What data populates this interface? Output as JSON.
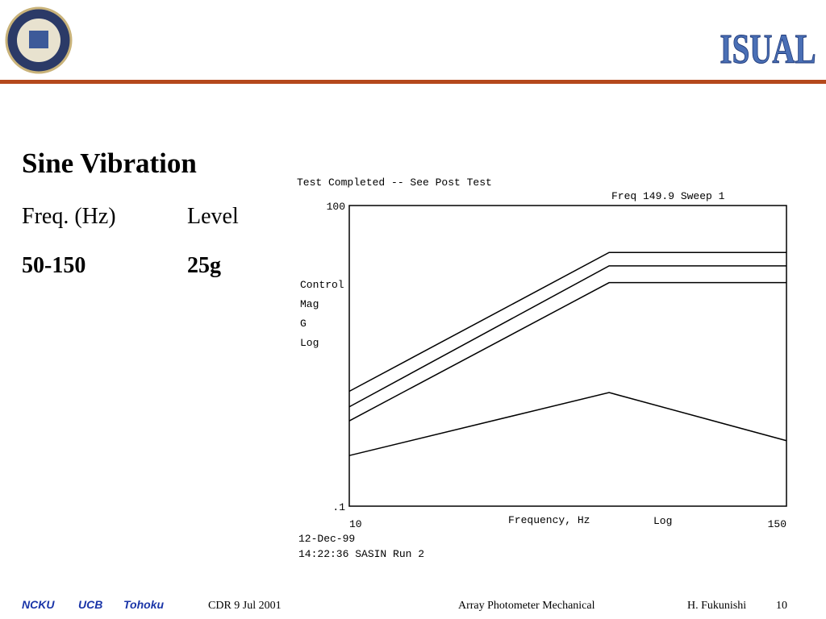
{
  "slide": {
    "logo_text": "ISUAL",
    "heading": "Sine Vibration",
    "col1_header": "Freq. (Hz)",
    "col2_header": "Level",
    "col1_value": "50-150",
    "col2_value": "25g",
    "footer": {
      "org1": "NCKU",
      "org2": "UCB",
      "org3": "Tohoku",
      "event": "CDR  9 Jul 2001",
      "topic": "Array Photometer Mechanical",
      "author": "H. Fukunishi",
      "page": "10"
    }
  },
  "chart_data": {
    "type": "line",
    "title": "Test Completed -- See Post Test",
    "subtitle": "Freq   149.9   Sweep  1",
    "ylabel_lines": [
      "Control",
      "Mag",
      "G",
      "Log"
    ],
    "xlabel": "Frequency, Hz",
    "xscale_label": "Log",
    "annotations": [
      "12-Dec-99",
      "14:22:36   SASIN   Run 2"
    ],
    "xscale": "log",
    "yscale": "log",
    "x": [
      10,
      50,
      150
    ],
    "xlim": [
      10,
      150
    ],
    "xticks": [
      10,
      150
    ],
    "ylim": [
      0.1,
      100
    ],
    "yticks": [
      {
        "value": 100,
        "label": "100"
      },
      {
        "value": 0.1,
        "label": ".1"
      }
    ],
    "series": [
      {
        "color": "#000000",
        "values": [
          1.4,
          34,
          34
        ]
      },
      {
        "color": "#000000",
        "values": [
          0.98,
          25,
          25
        ]
      },
      {
        "color": "#000000",
        "values": [
          0.71,
          17,
          17
        ]
      },
      {
        "color": "#000000",
        "values": [
          0.32,
          1.36,
          0.45
        ]
      }
    ]
  }
}
